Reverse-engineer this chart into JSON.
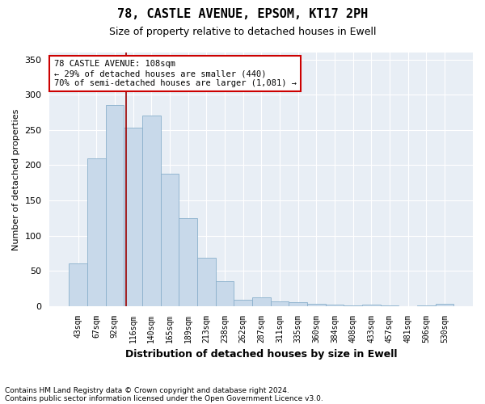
{
  "title1": "78, CASTLE AVENUE, EPSOM, KT17 2PH",
  "title2": "Size of property relative to detached houses in Ewell",
  "xlabel": "Distribution of detached houses by size in Ewell",
  "ylabel": "Number of detached properties",
  "categories": [
    "43sqm",
    "67sqm",
    "92sqm",
    "116sqm",
    "140sqm",
    "165sqm",
    "189sqm",
    "213sqm",
    "238sqm",
    "262sqm",
    "287sqm",
    "311sqm",
    "335sqm",
    "360sqm",
    "384sqm",
    "408sqm",
    "433sqm",
    "457sqm",
    "481sqm",
    "506sqm",
    "530sqm"
  ],
  "values": [
    60,
    210,
    285,
    253,
    270,
    188,
    125,
    68,
    35,
    9,
    12,
    6,
    5,
    3,
    2,
    1,
    2,
    1,
    0,
    1,
    3
  ],
  "bar_color": "#c8d9ea",
  "bar_edge_color": "#8ab0cc",
  "vline_x": 2.62,
  "vline_color": "#990000",
  "annotation_text": "78 CASTLE AVENUE: 108sqm\n← 29% of detached houses are smaller (440)\n70% of semi-detached houses are larger (1,081) →",
  "annotation_box_facecolor": "#ffffff",
  "annotation_box_edgecolor": "#cc0000",
  "ylim": [
    0,
    360
  ],
  "yticks": [
    0,
    50,
    100,
    150,
    200,
    250,
    300,
    350
  ],
  "footer1": "Contains HM Land Registry data © Crown copyright and database right 2024.",
  "footer2": "Contains public sector information licensed under the Open Government Licence v3.0.",
  "fig_facecolor": "#ffffff",
  "plot_facecolor": "#e8eef5",
  "grid_color": "#ffffff",
  "title1_fontsize": 11,
  "title2_fontsize": 9,
  "ylabel_fontsize": 8,
  "xlabel_fontsize": 9,
  "tick_fontsize": 8,
  "xtick_fontsize": 7,
  "annotation_fontsize": 7.5,
  "footer_fontsize": 6.5
}
